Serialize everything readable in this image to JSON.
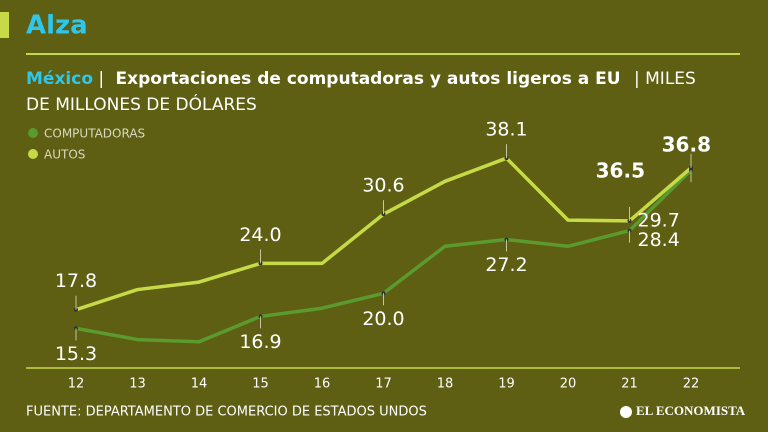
{
  "chart_data": {
    "type": "line",
    "title": "Alza",
    "subtitle": {
      "country": "México",
      "separator": "|",
      "text": "Exportaciones de computadoras y autos ligeros a EU",
      "units": [
        "| MILES",
        "DE MILLONES DE DÓLARES"
      ]
    },
    "categories": [
      "12",
      "13",
      "14",
      "15",
      "16",
      "17",
      "18",
      "19",
      "20",
      "21",
      "22"
    ],
    "series": [
      {
        "name": "COMPUTADORAS",
        "color": "#5b9a2e",
        "values": [
          15.3,
          13.8,
          13.5,
          16.9,
          18.0,
          20.0,
          26.3,
          27.2,
          26.3,
          28.4,
          36.5
        ],
        "value_labels": [
          "15.3",
          null,
          null,
          "16.9",
          null,
          "20.0",
          null,
          "27.2",
          null,
          "28.4",
          "36.5"
        ]
      },
      {
        "name": "AUTOS",
        "color": "#c6da48",
        "values": [
          17.8,
          20.5,
          21.5,
          24.0,
          24.0,
          30.6,
          35.0,
          38.1,
          29.8,
          29.7,
          36.8
        ],
        "value_labels": [
          "17.8",
          null,
          null,
          "24.0",
          null,
          "30.6",
          null,
          "38.1",
          null,
          "29.7",
          "36.8"
        ]
      }
    ],
    "ylim": [
      12,
      40
    ],
    "source": "FUENTE: DEPARTAMENTO DE COMERCIO DE ESTADOS UNDOS",
    "logo": "EL ECONOMISTA"
  }
}
